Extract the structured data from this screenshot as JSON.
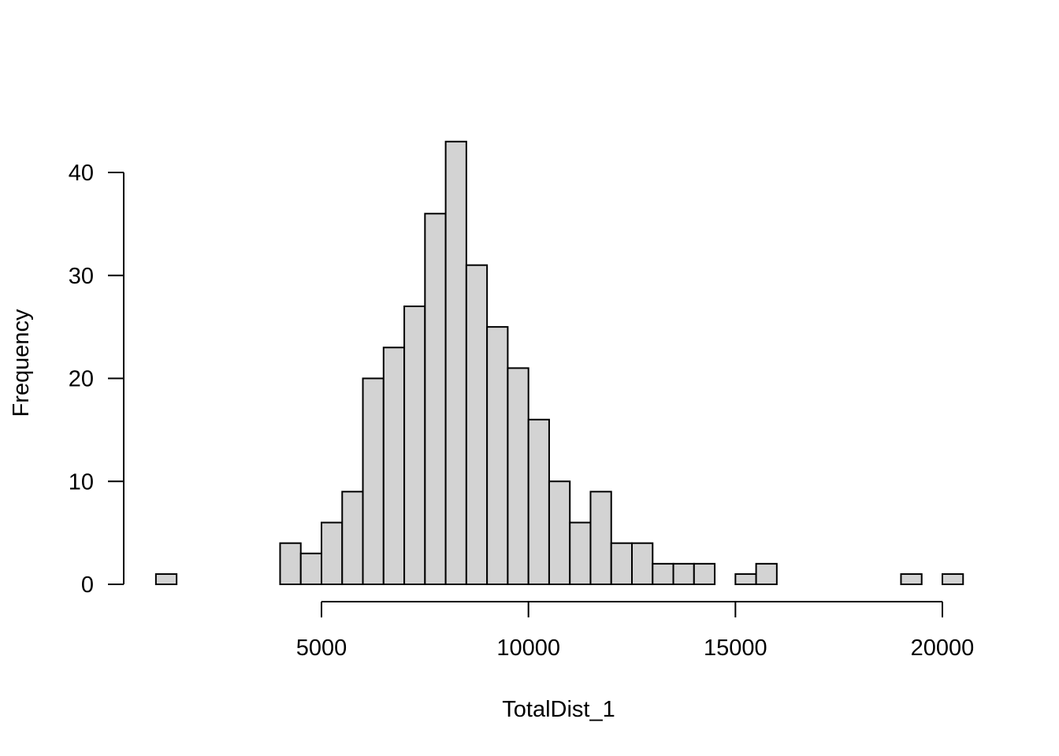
{
  "chart_data": {
    "type": "bar",
    "subtype": "histogram",
    "xlabel": "TotalDist_1",
    "ylabel": "Frequency",
    "bin_width": 500,
    "bins": [
      {
        "start": 1000,
        "end": 1500,
        "count": 1
      },
      {
        "start": 1500,
        "end": 2000,
        "count": 0
      },
      {
        "start": 2000,
        "end": 2500,
        "count": 0
      },
      {
        "start": 2500,
        "end": 3000,
        "count": 0
      },
      {
        "start": 3000,
        "end": 3500,
        "count": 0
      },
      {
        "start": 3500,
        "end": 4000,
        "count": 0
      },
      {
        "start": 4000,
        "end": 4500,
        "count": 4
      },
      {
        "start": 4500,
        "end": 5000,
        "count": 3
      },
      {
        "start": 5000,
        "end": 5500,
        "count": 6
      },
      {
        "start": 5500,
        "end": 6000,
        "count": 9
      },
      {
        "start": 6000,
        "end": 6500,
        "count": 20
      },
      {
        "start": 6500,
        "end": 7000,
        "count": 23
      },
      {
        "start": 7000,
        "end": 7500,
        "count": 27
      },
      {
        "start": 7500,
        "end": 8000,
        "count": 36
      },
      {
        "start": 8000,
        "end": 8500,
        "count": 43
      },
      {
        "start": 8500,
        "end": 9000,
        "count": 31
      },
      {
        "start": 9000,
        "end": 9500,
        "count": 25
      },
      {
        "start": 9500,
        "end": 10000,
        "count": 21
      },
      {
        "start": 10000,
        "end": 10500,
        "count": 16
      },
      {
        "start": 10500,
        "end": 11000,
        "count": 10
      },
      {
        "start": 11000,
        "end": 11500,
        "count": 6
      },
      {
        "start": 11500,
        "end": 12000,
        "count": 9
      },
      {
        "start": 12000,
        "end": 12500,
        "count": 4
      },
      {
        "start": 12500,
        "end": 13000,
        "count": 4
      },
      {
        "start": 13000,
        "end": 13500,
        "count": 2
      },
      {
        "start": 13500,
        "end": 14000,
        "count": 2
      },
      {
        "start": 14000,
        "end": 14500,
        "count": 2
      },
      {
        "start": 14500,
        "end": 15000,
        "count": 0
      },
      {
        "start": 15000,
        "end": 15500,
        "count": 1
      },
      {
        "start": 15500,
        "end": 16000,
        "count": 2
      },
      {
        "start": 16000,
        "end": 16500,
        "count": 0
      },
      {
        "start": 16500,
        "end": 17000,
        "count": 0
      },
      {
        "start": 17000,
        "end": 17500,
        "count": 0
      },
      {
        "start": 17500,
        "end": 18000,
        "count": 0
      },
      {
        "start": 18000,
        "end": 18500,
        "count": 0
      },
      {
        "start": 18500,
        "end": 19000,
        "count": 0
      },
      {
        "start": 19000,
        "end": 19500,
        "count": 1
      },
      {
        "start": 19500,
        "end": 20000,
        "count": 0
      },
      {
        "start": 20000,
        "end": 20500,
        "count": 1
      }
    ],
    "x_ticks": [
      5000,
      10000,
      15000,
      20000
    ],
    "x_tick_labels": [
      "5000",
      "10000",
      "15000",
      "20000"
    ],
    "y_ticks": [
      0,
      10,
      20,
      30,
      40
    ],
    "y_tick_labels": [
      "0",
      "10",
      "20",
      "30",
      "40"
    ],
    "xlim": [
      1000,
      20500
    ],
    "ylim": [
      0,
      43
    ],
    "bar_color": "#d3d3d3",
    "edge_color": "#000000",
    "grid": false,
    "legend": "none"
  }
}
